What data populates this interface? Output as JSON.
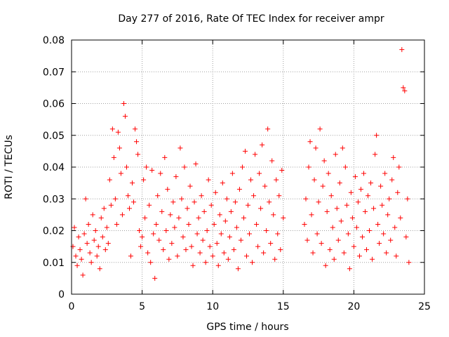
{
  "chart_data": {
    "type": "scatter",
    "title": "Day 277 of 2016, Rate Of TEC Index for receiver ampr",
    "xlabel": "GPS time / hours",
    "ylabel": "ROTI / TECUs",
    "xlim": [
      0,
      25
    ],
    "ylim": [
      0,
      0.08
    ],
    "grid": true,
    "marker": "+",
    "color": "#ff0000",
    "x_ticks": [
      0,
      5,
      10,
      15,
      20,
      25
    ],
    "x_tick_labels": [
      "0",
      "5",
      "10",
      "15",
      "20",
      "25"
    ],
    "y_ticks": [
      0,
      0.01,
      0.02,
      0.03,
      0.04,
      0.05,
      0.06,
      0.07,
      0.08
    ],
    "y_tick_labels": [
      "0",
      "0.01",
      "0.02",
      "0.03",
      "0.04",
      "0.05",
      "0.06",
      "0.07",
      "0.08"
    ],
    "data_gap_hours": [
      15.0,
      16.4
    ],
    "series": [
      {
        "name": "ROTI",
        "points": [
          [
            0.1,
            0.015
          ],
          [
            0.2,
            0.021
          ],
          [
            0.3,
            0.012
          ],
          [
            0.4,
            0.009
          ],
          [
            0.5,
            0.018
          ],
          [
            0.6,
            0.014
          ],
          [
            0.7,
            0.011
          ],
          [
            0.8,
            0.006
          ],
          [
            0.9,
            0.019
          ],
          [
            1.0,
            0.03
          ],
          [
            1.1,
            0.016
          ],
          [
            1.2,
            0.022
          ],
          [
            1.3,
            0.013
          ],
          [
            1.4,
            0.01
          ],
          [
            1.5,
            0.025
          ],
          [
            1.6,
            0.017
          ],
          [
            1.7,
            0.02
          ],
          [
            1.8,
            0.012
          ],
          [
            1.9,
            0.015
          ],
          [
            2.0,
            0.008
          ],
          [
            2.1,
            0.024
          ],
          [
            2.2,
            0.018
          ],
          [
            2.3,
            0.027
          ],
          [
            2.4,
            0.014
          ],
          [
            2.5,
            0.021
          ],
          [
            2.6,
            0.016
          ],
          [
            2.7,
            0.036
          ],
          [
            2.8,
            0.028
          ],
          [
            2.9,
            0.052
          ],
          [
            3.0,
            0.043
          ],
          [
            3.1,
            0.03
          ],
          [
            3.2,
            0.022
          ],
          [
            3.3,
            0.051
          ],
          [
            3.4,
            0.046
          ],
          [
            3.5,
            0.038
          ],
          [
            3.6,
            0.025
          ],
          [
            3.7,
            0.06
          ],
          [
            3.8,
            0.056
          ],
          [
            3.9,
            0.04
          ],
          [
            4.0,
            0.031
          ],
          [
            4.1,
            0.027
          ],
          [
            4.2,
            0.012
          ],
          [
            4.3,
            0.035
          ],
          [
            4.4,
            0.029
          ],
          [
            4.5,
            0.052
          ],
          [
            4.6,
            0.048
          ],
          [
            4.7,
            0.044
          ],
          [
            4.8,
            0.02
          ],
          [
            4.9,
            0.015
          ],
          [
            5.0,
            0.018
          ],
          [
            5.1,
            0.036
          ],
          [
            5.2,
            0.024
          ],
          [
            5.3,
            0.04
          ],
          [
            5.4,
            0.013
          ],
          [
            5.5,
            0.028
          ],
          [
            5.6,
            0.01
          ],
          [
            5.7,
            0.039
          ],
          [
            5.8,
            0.019
          ],
          [
            5.9,
            0.005
          ],
          [
            6.0,
            0.022
          ],
          [
            6.1,
            0.031
          ],
          [
            6.2,
            0.017
          ],
          [
            6.3,
            0.038
          ],
          [
            6.4,
            0.026
          ],
          [
            6.5,
            0.014
          ],
          [
            6.6,
            0.043
          ],
          [
            6.7,
            0.02
          ],
          [
            6.8,
            0.033
          ],
          [
            6.9,
            0.011
          ],
          [
            7.0,
            0.025
          ],
          [
            7.1,
            0.016
          ],
          [
            7.2,
            0.029
          ],
          [
            7.3,
            0.021
          ],
          [
            7.4,
            0.037
          ],
          [
            7.5,
            0.012
          ],
          [
            7.6,
            0.024
          ],
          [
            7.7,
            0.046
          ],
          [
            7.8,
            0.03
          ],
          [
            7.9,
            0.018
          ],
          [
            8.0,
            0.04
          ],
          [
            8.1,
            0.014
          ],
          [
            8.2,
            0.027
          ],
          [
            8.3,
            0.022
          ],
          [
            8.4,
            0.034
          ],
          [
            8.5,
            0.015
          ],
          [
            8.6,
            0.009
          ],
          [
            8.7,
            0.029
          ],
          [
            8.8,
            0.041
          ],
          [
            8.9,
            0.019
          ],
          [
            9.0,
            0.024
          ],
          [
            9.1,
            0.013
          ],
          [
            9.2,
            0.031
          ],
          [
            9.3,
            0.017
          ],
          [
            9.4,
            0.026
          ],
          [
            9.5,
            0.01
          ],
          [
            9.6,
            0.02
          ],
          [
            9.7,
            0.036
          ],
          [
            9.8,
            0.015
          ],
          [
            9.9,
            0.028
          ],
          [
            10.0,
            0.012
          ],
          [
            10.1,
            0.022
          ],
          [
            10.2,
            0.032
          ],
          [
            10.3,
            0.016
          ],
          [
            10.4,
            0.009
          ],
          [
            10.5,
            0.025
          ],
          [
            10.6,
            0.019
          ],
          [
            10.7,
            0.035
          ],
          [
            10.8,
            0.013
          ],
          [
            10.9,
            0.023
          ],
          [
            11.0,
            0.03
          ],
          [
            11.1,
            0.011
          ],
          [
            11.2,
            0.018
          ],
          [
            11.3,
            0.026
          ],
          [
            11.4,
            0.038
          ],
          [
            11.5,
            0.014
          ],
          [
            11.6,
            0.029
          ],
          [
            11.7,
            0.021
          ],
          [
            11.8,
            0.008
          ],
          [
            11.9,
            0.033
          ],
          [
            12.0,
            0.017
          ],
          [
            12.1,
            0.04
          ],
          [
            12.2,
            0.024
          ],
          [
            12.3,
            0.045
          ],
          [
            12.4,
            0.012
          ],
          [
            12.5,
            0.028
          ],
          [
            12.6,
            0.019
          ],
          [
            12.7,
            0.036
          ],
          [
            12.8,
            0.01
          ],
          [
            12.9,
            0.031
          ],
          [
            13.0,
            0.044
          ],
          [
            13.1,
            0.022
          ],
          [
            13.2,
            0.015
          ],
          [
            13.3,
            0.038
          ],
          [
            13.4,
            0.027
          ],
          [
            13.5,
            0.047
          ],
          [
            13.6,
            0.013
          ],
          [
            13.7,
            0.034
          ],
          [
            13.8,
            0.02
          ],
          [
            13.9,
            0.052
          ],
          [
            14.0,
            0.029
          ],
          [
            14.1,
            0.016
          ],
          [
            14.2,
            0.042
          ],
          [
            14.3,
            0.025
          ],
          [
            14.4,
            0.011
          ],
          [
            14.5,
            0.036
          ],
          [
            14.6,
            0.019
          ],
          [
            14.7,
            0.031
          ],
          [
            14.8,
            0.014
          ],
          [
            14.9,
            0.039
          ],
          [
            15.0,
            0.024
          ],
          [
            16.5,
            0.022
          ],
          [
            16.6,
            0.03
          ],
          [
            16.7,
            0.017
          ],
          [
            16.8,
            0.04
          ],
          [
            16.9,
            0.048
          ],
          [
            17.0,
            0.025
          ],
          [
            17.1,
            0.013
          ],
          [
            17.2,
            0.036
          ],
          [
            17.3,
            0.046
          ],
          [
            17.4,
            0.019
          ],
          [
            17.5,
            0.029
          ],
          [
            17.6,
            0.052
          ],
          [
            17.7,
            0.016
          ],
          [
            17.8,
            0.034
          ],
          [
            17.9,
            0.042
          ],
          [
            18.0,
            0.009
          ],
          [
            18.1,
            0.026
          ],
          [
            18.2,
            0.038
          ],
          [
            18.3,
            0.014
          ],
          [
            18.4,
            0.031
          ],
          [
            18.5,
            0.021
          ],
          [
            18.6,
            0.011
          ],
          [
            18.7,
            0.044
          ],
          [
            18.8,
            0.027
          ],
          [
            18.9,
            0.017
          ],
          [
            19.0,
            0.035
          ],
          [
            19.1,
            0.023
          ],
          [
            19.2,
            0.046
          ],
          [
            19.3,
            0.013
          ],
          [
            19.4,
            0.04
          ],
          [
            19.5,
            0.028
          ],
          [
            19.6,
            0.019
          ],
          [
            19.7,
            0.008
          ],
          [
            19.8,
            0.032
          ],
          [
            19.9,
            0.024
          ],
          [
            20.0,
            0.015
          ],
          [
            20.1,
            0.037
          ],
          [
            20.2,
            0.021
          ],
          [
            20.3,
            0.029
          ],
          [
            20.4,
            0.012
          ],
          [
            20.5,
            0.033
          ],
          [
            20.6,
            0.018
          ],
          [
            20.7,
            0.038
          ],
          [
            20.8,
            0.026
          ],
          [
            20.9,
            0.014
          ],
          [
            21.0,
            0.031
          ],
          [
            21.1,
            0.02
          ],
          [
            21.2,
            0.035
          ],
          [
            21.3,
            0.011
          ],
          [
            21.4,
            0.027
          ],
          [
            21.5,
            0.044
          ],
          [
            21.6,
            0.05
          ],
          [
            21.7,
            0.022
          ],
          [
            21.8,
            0.016
          ],
          [
            21.9,
            0.034
          ],
          [
            22.0,
            0.028
          ],
          [
            22.1,
            0.019
          ],
          [
            22.2,
            0.038
          ],
          [
            22.3,
            0.013
          ],
          [
            22.4,
            0.025
          ],
          [
            22.5,
            0.03
          ],
          [
            22.6,
            0.017
          ],
          [
            22.7,
            0.036
          ],
          [
            22.8,
            0.043
          ],
          [
            22.9,
            0.021
          ],
          [
            23.0,
            0.012
          ],
          [
            23.1,
            0.032
          ],
          [
            23.2,
            0.04
          ],
          [
            23.3,
            0.024
          ],
          [
            23.4,
            0.077
          ],
          [
            23.5,
            0.065
          ],
          [
            23.6,
            0.064
          ],
          [
            23.7,
            0.018
          ],
          [
            23.8,
            0.03
          ],
          [
            23.9,
            0.01
          ]
        ]
      }
    ]
  }
}
